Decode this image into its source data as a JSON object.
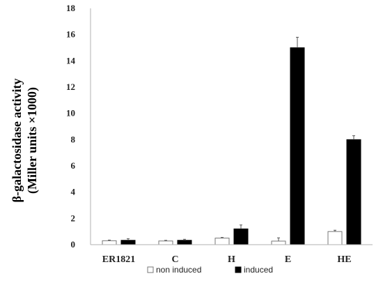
{
  "chart_data": {
    "type": "bar",
    "title": "",
    "xlabel": "",
    "ylabel_lines": [
      "β-galactosidase activity",
      "(Miller units ×1000)"
    ],
    "ylim": [
      0,
      18
    ],
    "yticks": [
      0,
      2,
      4,
      6,
      8,
      10,
      12,
      14,
      16,
      18
    ],
    "categories": [
      "ER1821",
      "C",
      "H",
      "E",
      "HE"
    ],
    "series": [
      {
        "name": "non induced",
        "values": [
          0.3,
          0.28,
          0.5,
          0.27,
          1.0
        ],
        "errors": [
          0.05,
          0.05,
          0.05,
          0.25,
          0.1
        ],
        "fill": "#ffffff",
        "stroke": "#777777"
      },
      {
        "name": "induced",
        "values": [
          0.33,
          0.33,
          1.2,
          15.0,
          8.0
        ],
        "errors": [
          0.12,
          0.08,
          0.3,
          0.8,
          0.3
        ],
        "fill": "#000000",
        "stroke": "#000000"
      }
    ],
    "grid": false,
    "legend_position": "bottom"
  }
}
